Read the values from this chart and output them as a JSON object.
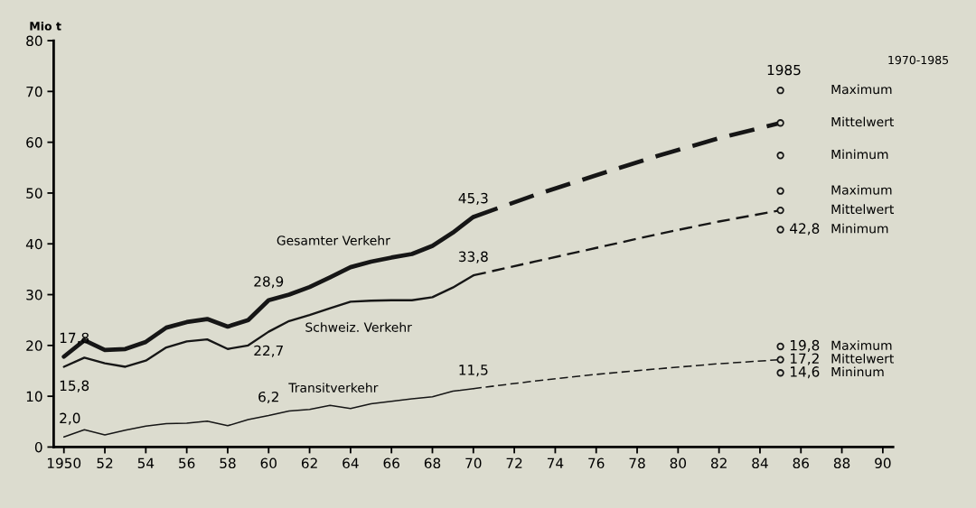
{
  "chart_data": {
    "type": "line",
    "ylabel": "Mio t",
    "xlim": [
      1949.5,
      1990.5
    ],
    "ylim": [
      0,
      80
    ],
    "xticks": [
      {
        "value": 1950,
        "label": "1950"
      },
      {
        "value": 1952,
        "label": "52"
      },
      {
        "value": 1954,
        "label": "54"
      },
      {
        "value": 1956,
        "label": "56"
      },
      {
        "value": 1958,
        "label": "58"
      },
      {
        "value": 1960,
        "label": "60"
      },
      {
        "value": 1962,
        "label": "62"
      },
      {
        "value": 1964,
        "label": "64"
      },
      {
        "value": 1966,
        "label": "66"
      },
      {
        "value": 1968,
        "label": "68"
      },
      {
        "value": 1970,
        "label": "70"
      },
      {
        "value": 1972,
        "label": "72"
      },
      {
        "value": 1974,
        "label": "74"
      },
      {
        "value": 1976,
        "label": "76"
      },
      {
        "value": 1978,
        "label": "78"
      },
      {
        "value": 1980,
        "label": "80"
      },
      {
        "value": 1982,
        "label": "82"
      },
      {
        "value": 1984,
        "label": "84"
      },
      {
        "value": 1986,
        "label": "86"
      },
      {
        "value": 1988,
        "label": "88"
      },
      {
        "value": 1990,
        "label": "90"
      }
    ],
    "yticks": [
      0,
      10,
      20,
      30,
      40,
      50,
      60,
      70,
      80
    ],
    "grid": false,
    "legend": false,
    "marker": "none",
    "line_style": "solid",
    "series": [
      {
        "name": "Gesamter Verkehr",
        "color": "#161616",
        "x": [
          1950,
          1951,
          1952,
          1953,
          1954,
          1955,
          1956,
          1957,
          1958,
          1959,
          1960,
          1961,
          1962,
          1963,
          1964,
          1965,
          1966,
          1967,
          1968,
          1969,
          1970
        ],
        "values": [
          17.8,
          21.0,
          19.1,
          19.3,
          20.7,
          23.5,
          24.6,
          25.2,
          23.7,
          25.0,
          28.9,
          30.0,
          31.5,
          33.4,
          35.4,
          36.5,
          37.3,
          38.0,
          39.6,
          42.2,
          45.3
        ],
        "value_labels": [
          "17,8",
          null,
          null,
          null,
          null,
          null,
          null,
          null,
          null,
          null,
          "28,9",
          null,
          null,
          null,
          null,
          null,
          null,
          null,
          null,
          null,
          "45,3"
        ]
      },
      {
        "name": "Schweiz. Verkehr",
        "color": "#161616",
        "x": [
          1950,
          1951,
          1952,
          1953,
          1954,
          1955,
          1956,
          1957,
          1958,
          1959,
          1960,
          1961,
          1962,
          1963,
          1964,
          1965,
          1966,
          1967,
          1968,
          1969,
          1970
        ],
        "values": [
          15.8,
          17.6,
          16.5,
          15.8,
          17.0,
          19.6,
          20.8,
          21.2,
          19.3,
          20.0,
          22.7,
          24.8,
          26.0,
          27.3,
          28.6,
          28.8,
          28.9,
          28.9,
          29.5,
          31.4,
          33.8
        ],
        "value_labels": [
          "15,8",
          null,
          null,
          null,
          null,
          null,
          null,
          null,
          null,
          null,
          "22,7",
          null,
          null,
          null,
          null,
          null,
          null,
          null,
          null,
          null,
          "33,8"
        ]
      },
      {
        "name": "Transitverkehr",
        "color": "#161616",
        "x": [
          1950,
          1951,
          1952,
          1953,
          1954,
          1955,
          1956,
          1957,
          1958,
          1959,
          1960,
          1961,
          1962,
          1963,
          1964,
          1965,
          1966,
          1967,
          1968,
          1969,
          1970
        ],
        "values": [
          2.0,
          3.4,
          2.4,
          3.3,
          4.1,
          4.6,
          4.7,
          5.1,
          4.2,
          5.4,
          6.2,
          7.1,
          7.4,
          8.2,
          7.6,
          8.5,
          9.0,
          9.5,
          9.9,
          11.0,
          11.5
        ],
        "value_labels": [
          "2,0",
          null,
          null,
          null,
          null,
          null,
          null,
          null,
          null,
          null,
          "6,2",
          null,
          null,
          null,
          null,
          null,
          null,
          null,
          null,
          null,
          "11,5"
        ]
      },
      {
        "color": "#161616",
        "line_style": "dashed",
        "x": [
          1970,
          1973,
          1976,
          1979,
          1982,
          1985
        ],
        "values": [
          45.3,
          49.6,
          53.5,
          57.3,
          60.8,
          63.8
        ]
      },
      {
        "color": "#161616",
        "line_style": "dashed",
        "x": [
          1970,
          1973,
          1976,
          1979,
          1982,
          1985
        ],
        "values": [
          33.8,
          36.5,
          39.2,
          41.9,
          44.4,
          46.6
        ]
      },
      {
        "color": "#161616",
        "line_style": "dashed",
        "x": [
          1970,
          1973,
          1976,
          1979,
          1982,
          1985
        ],
        "values": [
          11.5,
          13.0,
          14.3,
          15.4,
          16.4,
          17.2
        ]
      },
      {
        "type": "scatter",
        "marker": "circle",
        "color": "#161616",
        "x": [
          1985,
          1985,
          1985
        ],
        "values": [
          70.2,
          63.8,
          57.4
        ],
        "value_labels": [
          null,
          null,
          null
        ]
      },
      {
        "type": "scatter",
        "marker": "circle",
        "color": "#161616",
        "x": [
          1985,
          1985,
          1985
        ],
        "values": [
          50.4,
          46.6,
          42.8
        ],
        "value_labels": [
          null,
          null,
          "42,8"
        ]
      },
      {
        "type": "scatter",
        "marker": "circle",
        "color": "#161616",
        "x": [
          1985,
          1985,
          1985
        ],
        "values": [
          19.8,
          17.2,
          14.6
        ],
        "value_labels": [
          "19,8",
          "17,2",
          "14,6"
        ]
      }
    ],
    "annotations": [
      "1985",
      "1970-1985",
      "Maximum",
      "Mittelwert",
      "Minimum",
      "Maximum",
      "Mittelwert",
      "Minimum",
      "Maximum",
      "Mittelwert",
      "Mininum"
    ]
  }
}
